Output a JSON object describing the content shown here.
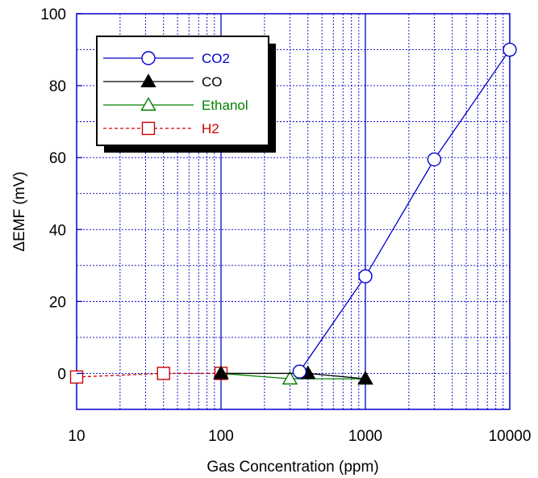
{
  "chart_data": {
    "type": "line",
    "title": "",
    "xlabel": "Gas Concentration (ppm)",
    "ylabel": "ΔEMF (mV)",
    "xscale": "log",
    "xlim": [
      10,
      10000
    ],
    "ylim": [
      -10,
      100
    ],
    "xticks": [
      "10",
      "100",
      "1000",
      "10000"
    ],
    "yticks": [
      "0",
      "20",
      "40",
      "60",
      "80",
      "100"
    ],
    "grid": true,
    "legend_position": "top-left",
    "series": [
      {
        "name": "CO2",
        "color": "#0000cc",
        "marker": "open-circle",
        "line": "solid",
        "x": [
          350,
          1000,
          3000,
          10000
        ],
        "y": [
          0.5,
          27,
          59.5,
          90
        ]
      },
      {
        "name": "CO",
        "color": "#000000",
        "marker": "filled-triangle",
        "line": "solid",
        "x": [
          100,
          400,
          1000
        ],
        "y": [
          0,
          0,
          -1.5
        ]
      },
      {
        "name": "Ethanol",
        "color": "#008000",
        "marker": "open-triangle",
        "line": "solid",
        "x": [
          100,
          300,
          1000
        ],
        "y": [
          0,
          -1.5,
          -1.5
        ]
      },
      {
        "name": "H2",
        "color": "#cc0000",
        "marker": "open-square",
        "line": "dashed",
        "x": [
          10,
          40,
          100
        ],
        "y": [
          -1,
          0,
          0
        ]
      }
    ]
  }
}
